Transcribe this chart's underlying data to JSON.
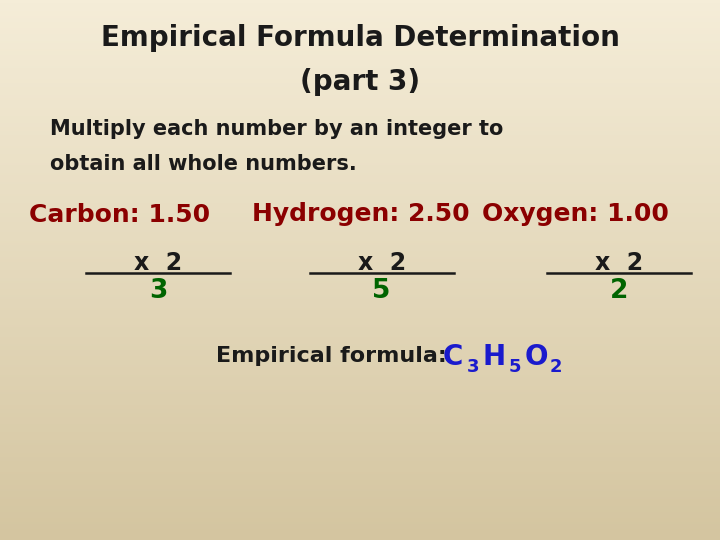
{
  "title_line1": "Empirical Formula Determination",
  "title_line2": "(part 3)",
  "subtitle_line1": "Multiply each number by an integer to",
  "subtitle_line2": "obtain all whole numbers.",
  "bg_color_top": "#f5edd8",
  "bg_color_bottom": "#d4c5a0",
  "title_color": "#1a1a1a",
  "subtitle_color": "#1a1a1a",
  "red_color": "#8b0000",
  "green_color": "#006400",
  "black_color": "#1a1a1a",
  "blue_color": "#1a1acd",
  "carbon_label": "Carbon: 1.50",
  "carbon_result": "3",
  "hydrogen_label": "Hydrogen: 2.50",
  "hydrogen_result": "5",
  "oxygen_label": "Oxygen: 1.00",
  "oxygen_result": "2",
  "mult_text": "x  2",
  "formula_label": "Empirical formula:",
  "title_fontsize": 20,
  "subtitle_fontsize": 15,
  "label_fontsize": 18,
  "mult_fontsize": 17,
  "result_fontsize": 19,
  "formula_label_fontsize": 16,
  "formula_fontsize": 20,
  "formula_sub_fontsize": 13
}
